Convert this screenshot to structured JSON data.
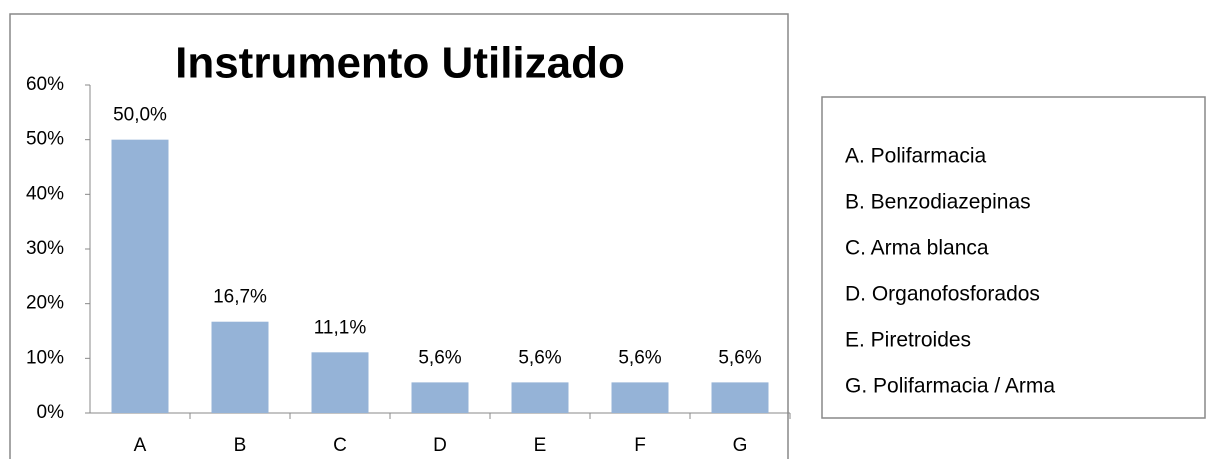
{
  "chart_data": {
    "type": "bar",
    "title": "Instrumento Utilizado",
    "categories": [
      "A",
      "B",
      "C",
      "D",
      "E",
      "F",
      "G"
    ],
    "values": [
      50.0,
      16.7,
      11.1,
      5.6,
      5.6,
      5.6,
      5.6
    ],
    "value_labels": [
      "50,0%",
      "16,7%",
      "11,1%",
      "5,6%",
      "5,6%",
      "5,6%",
      "5,6%"
    ],
    "color": "#95b3d7",
    "ylim": [
      0,
      60
    ],
    "yticks": [
      {
        "value": 0,
        "label": "0%"
      },
      {
        "value": 10,
        "label": "10%"
      },
      {
        "value": 20,
        "label": "20%"
      },
      {
        "value": 30,
        "label": "30%"
      },
      {
        "value": 40,
        "label": "40%"
      },
      {
        "value": 50,
        "label": "50%"
      },
      {
        "value": 60,
        "label": "60%"
      }
    ],
    "grid": false,
    "annotations": [
      "A. Polifarmacia",
      "B. Benzodiazepinas",
      "C. Arma blanca",
      "D. Organofosforados",
      "E. Piretroides",
      "G. Polifarmacia / Arma"
    ]
  }
}
